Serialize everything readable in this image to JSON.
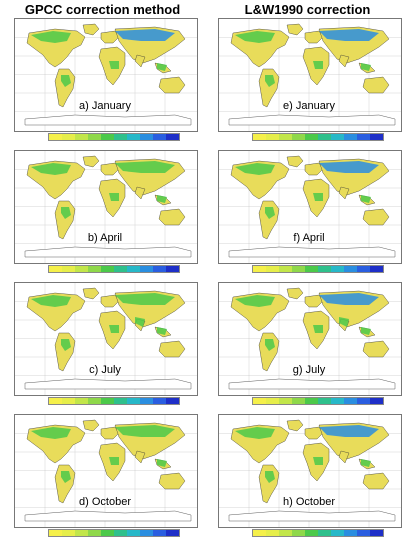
{
  "titles": {
    "left": "GPCC correction method",
    "right": "L&W1990 correction"
  },
  "panels": [
    {
      "label": "a) January",
      "method": "GPCC",
      "month": "January"
    },
    {
      "label": "e) January",
      "method": "L&W1990",
      "month": "January"
    },
    {
      "label": "b) April",
      "method": "GPCC",
      "month": "April"
    },
    {
      "label": "f) April",
      "method": "L&W1990",
      "month": "April"
    },
    {
      "label": "c) July",
      "method": "GPCC",
      "month": "July"
    },
    {
      "label": "g) July",
      "method": "L&W1990",
      "month": "July"
    },
    {
      "label": "d) October",
      "method": "GPCC",
      "month": "October"
    },
    {
      "label": "h) October",
      "method": "L&W1990",
      "month": "October"
    }
  ],
  "colorbar": {
    "colors": [
      "#f5f04a",
      "#e6ee4a",
      "#c2e64a",
      "#8fd84a",
      "#4cc94a",
      "#2fc08c",
      "#27b8c8",
      "#2a8ee0",
      "#2a5ee0",
      "#1e2fc8"
    ]
  },
  "colors": {
    "land_base": "#e8dc5a",
    "wet": "#4cc94a",
    "very_wet": "#2a8ee0",
    "coast": "#333333",
    "grid": "#bbbbbb"
  }
}
